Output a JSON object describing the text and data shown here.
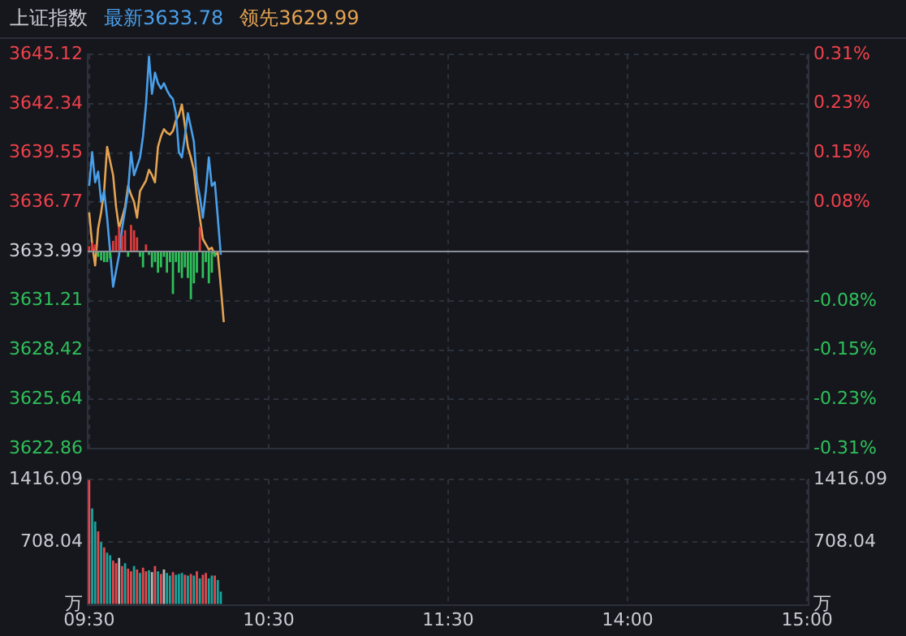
{
  "chart_data": [
    {
      "type": "line",
      "title": "上证指数",
      "legend": "top left",
      "grid": true,
      "tick_labels": "y",
      "categories": [
        null,
        null,
        null,
        null,
        null,
        null,
        null,
        null,
        null,
        null,
        null,
        null,
        null,
        null,
        null,
        null,
        null,
        null,
        null,
        null,
        null,
        null,
        null,
        null,
        null,
        null,
        null,
        null,
        null,
        null,
        null,
        null,
        null,
        null,
        null,
        null,
        null,
        null,
        null,
        null,
        null,
        null,
        null,
        null,
        null,
        null,
        null,
        null,
        null,
        null,
        null,
        null,
        null,
        null,
        null,
        null,
        null,
        null,
        null,
        null,
        null,
        null,
        null,
        null,
        null,
        null,
        null,
        null,
        null,
        null,
        null,
        null,
        null,
        null,
        null,
        null,
        null,
        null,
        null,
        null,
        null,
        null,
        null,
        null,
        null,
        null,
        null,
        null,
        null,
        null,
        null,
        null,
        null,
        null,
        null,
        null,
        null,
        null,
        null,
        null,
        null,
        null,
        null,
        null,
        null,
        null,
        null,
        null,
        null,
        null,
        null,
        null,
        null,
        null,
        null,
        null,
        null,
        null,
        null,
        null,
        null,
        null,
        null,
        null,
        null,
        null,
        null,
        null,
        null,
        null,
        null,
        null,
        null,
        null,
        null,
        null,
        null,
        null,
        null,
        null,
        null,
        null,
        null,
        null,
        null,
        null,
        null,
        null,
        null,
        null,
        null,
        null,
        null,
        null,
        null,
        null,
        null,
        null,
        null,
        null,
        null,
        null,
        null,
        null,
        null,
        null,
        null,
        null,
        null,
        null,
        null,
        null,
        null,
        null,
        null,
        null,
        null,
        null,
        null,
        null,
        null,
        null,
        null,
        null,
        null,
        null,
        null,
        null,
        null,
        null,
        null,
        null,
        null,
        null,
        null,
        null,
        null,
        null,
        null,
        null,
        null,
        null,
        null,
        null,
        null,
        null,
        null,
        null,
        null,
        null,
        null,
        null,
        null,
        null,
        null,
        null,
        null,
        null,
        null,
        null,
        null,
        null,
        null,
        null,
        null,
        null,
        null,
        null,
        null,
        null,
        null,
        null,
        null,
        null,
        null,
        null,
        null,
        null,
        null,
        null,
        null
      ],
      "ylim": [
        3622.86,
        3645.12
      ],
      "yticks": [
        3622.86,
        3625.64,
        3628.42,
        3631.21,
        3633.99,
        3636.77,
        3639.55,
        3642.34,
        3645.12
      ],
      "y2lim": [
        -0.306,
        0.306
      ],
      "y2ticks": [
        {
          "value": -0.306,
          "label": "-0.31%"
        },
        {
          "value": -0.23,
          "label": "-0.23%"
        },
        {
          "value": -0.153,
          "label": "-0.15%"
        },
        {
          "value": -0.077,
          "label": "-0.08%"
        },
        {
          "value": 0.077,
          "label": "0.08%"
        },
        {
          "value": 0.153,
          "label": "0.15%"
        },
        {
          "value": 0.23,
          "label": "0.23%"
        },
        {
          "value": 0.306,
          "label": "0.31%"
        }
      ],
      "ref_lines": [
        {
          "axis": "y",
          "value": 3633.99,
          "color": "#8a8f98"
        }
      ],
      "series": [
        {
          "type": "bar",
          "base": [
            3633.99,
            3633.99,
            3633.99,
            3633.99,
            3633.99,
            3633.99,
            3633.99,
            3633.99,
            3633.99,
            3633.99,
            3633.99,
            3633.99,
            3633.99,
            3633.99,
            3633.99,
            3633.99,
            3633.99,
            3633.99,
            3633.99,
            3633.99,
            3633.99,
            3633.99,
            3633.99,
            3633.99,
            3633.99,
            3633.99,
            3633.99,
            3633.99,
            3633.99,
            3633.99,
            3633.99,
            3633.99,
            3633.99,
            3633.99,
            3633.99,
            3633.99,
            3633.99,
            3633.99,
            3633.99,
            3633.99,
            3633.99,
            3633.99,
            3633.99,
            null,
            null,
            null,
            null,
            null,
            null,
            null,
            null,
            null,
            null,
            null,
            null,
            null,
            null,
            null,
            null,
            null,
            null,
            null,
            null,
            null,
            null,
            null,
            null,
            null,
            null,
            null,
            null,
            null,
            null,
            null,
            null,
            null,
            null,
            null,
            null,
            null,
            null,
            null,
            null,
            null,
            null,
            null,
            null,
            null,
            null,
            null,
            null,
            null,
            null,
            null,
            null,
            null,
            null,
            null,
            null,
            null,
            null,
            null,
            null,
            null,
            null,
            null,
            null,
            null,
            null,
            null,
            null,
            null,
            null,
            null,
            null,
            null,
            null,
            null,
            null,
            null,
            null,
            null,
            null,
            null,
            null,
            null,
            null,
            null,
            null,
            null,
            null,
            null,
            null,
            null,
            null,
            null,
            null,
            null,
            null,
            null,
            null,
            null,
            null,
            null,
            null,
            null,
            null,
            null,
            null,
            null,
            null,
            null,
            null,
            null,
            null,
            null,
            null,
            null,
            null,
            null,
            null,
            null,
            null,
            null,
            null,
            null,
            null,
            null,
            null,
            null,
            null,
            null,
            null,
            null,
            null,
            null,
            null,
            null,
            null,
            null,
            null,
            null,
            null,
            null,
            null,
            null,
            null,
            null,
            null,
            null,
            null,
            null,
            null,
            null,
            null,
            null,
            null,
            null,
            null,
            null,
            null,
            null,
            null,
            null,
            null,
            null,
            null,
            null,
            null,
            null,
            null,
            null,
            null,
            null,
            null,
            null,
            null,
            null,
            null,
            null,
            null,
            null,
            null,
            null,
            null,
            null,
            null,
            null,
            null,
            null,
            null,
            null,
            null,
            null,
            null,
            null,
            null,
            null,
            null,
            null,
            null
          ],
          "values": [
            0.3,
            0.5,
            0.4,
            -0.3,
            -0.5,
            -0.6,
            -0.6,
            -0.4,
            0.6,
            0.9,
            1.4,
            0.9,
            1.2,
            -0.3,
            1.5,
            1.2,
            0.8,
            -0.3,
            -0.9,
            0.4,
            -0.2,
            -0.9,
            -0.6,
            -1.2,
            -0.9,
            -0.3,
            -1.2,
            -0.6,
            -2.4,
            -0.6,
            -1.2,
            -1.5,
            -0.9,
            -1.5,
            -2.7,
            -1.8,
            -1.2,
            1.4,
            -1.5,
            -0.6,
            -1.8,
            -1.2,
            -0.3,
            null,
            null,
            null,
            null,
            null,
            null,
            null,
            null,
            null,
            null,
            null,
            null,
            null,
            null,
            null,
            null,
            null,
            null,
            null,
            null,
            null,
            null,
            null,
            null,
            null,
            null,
            null,
            null,
            null,
            null,
            null,
            null,
            null,
            null,
            null,
            null,
            null,
            null,
            null,
            null,
            null,
            null,
            null,
            null,
            null,
            null,
            null,
            null,
            null,
            null,
            null,
            null,
            null,
            null,
            null,
            null,
            null,
            null,
            null,
            null,
            null,
            null,
            null,
            null,
            null,
            null,
            null,
            null,
            null,
            null,
            null,
            null,
            null,
            null,
            null,
            null,
            null,
            null,
            null,
            null,
            null,
            null,
            null,
            null,
            null,
            null,
            null,
            null,
            null,
            null,
            null,
            null,
            null,
            null,
            null,
            null,
            null,
            null,
            null,
            null,
            null,
            null,
            null,
            null,
            null,
            null,
            null,
            null,
            null,
            null,
            null,
            null,
            null,
            null,
            null,
            null,
            null,
            null,
            null,
            null,
            null,
            null,
            null,
            null,
            null,
            null,
            null,
            null,
            null,
            null,
            null,
            null,
            null,
            null,
            null,
            null,
            null,
            null,
            null,
            null,
            null,
            null,
            null,
            null,
            null,
            null,
            null,
            null,
            null,
            null,
            null,
            null,
            null,
            null,
            null,
            null,
            null,
            null,
            null,
            null,
            null,
            null,
            null,
            null,
            null,
            null,
            null,
            null,
            null,
            null,
            null,
            null,
            null,
            null,
            null,
            null,
            null,
            null,
            null,
            null,
            null,
            null,
            null,
            null,
            null,
            null,
            null,
            null,
            null,
            null,
            null,
            null,
            null,
            null,
            null,
            null,
            null,
            null
          ],
          "colors": [
            "#e03b3b",
            "#e03b3b",
            "#e03b3b",
            "#2fc05a",
            "#2fc05a",
            "#2fc05a",
            "#2fc05a",
            "#2fc05a",
            "#e03b3b",
            "#e03b3b",
            "#e03b3b",
            "#e03b3b",
            "#e03b3b",
            "#2fc05a",
            "#e03b3b",
            "#e03b3b",
            "#e03b3b",
            "#2fc05a",
            "#2fc05a",
            "#e03b3b",
            "#2fc05a",
            "#2fc05a",
            "#2fc05a",
            "#2fc05a",
            "#2fc05a",
            "#2fc05a",
            "#2fc05a",
            "#2fc05a",
            "#2fc05a",
            "#2fc05a",
            "#2fc05a",
            "#2fc05a",
            "#2fc05a",
            "#2fc05a",
            "#2fc05a",
            "#2fc05a",
            "#2fc05a",
            "#e03b3b",
            "#2fc05a",
            "#2fc05a",
            "#2fc05a",
            "#2fc05a",
            "#2fc05a",
            null,
            null,
            null,
            null,
            null,
            null,
            null,
            null,
            null,
            null,
            null,
            null,
            null,
            null,
            null,
            null,
            null,
            null,
            null,
            null,
            null,
            null,
            null,
            null,
            null,
            null,
            null,
            null,
            null,
            null,
            null,
            null,
            null,
            null,
            null,
            null,
            null,
            null,
            null,
            null,
            null,
            null,
            null,
            null,
            null,
            null,
            null,
            null,
            null,
            null,
            null,
            null,
            null,
            null,
            null,
            null,
            null,
            null,
            null,
            null,
            null,
            null,
            null,
            null,
            null,
            null,
            null,
            null,
            null,
            null,
            null,
            null,
            null,
            null,
            null,
            null,
            null,
            null,
            null,
            null,
            null,
            null,
            null,
            null,
            null,
            null,
            null,
            null,
            null,
            null,
            null,
            null,
            null,
            null,
            null,
            null,
            null,
            null,
            null,
            null,
            null,
            null,
            null,
            null,
            null,
            null,
            null,
            null,
            null,
            null,
            null,
            null,
            null,
            null,
            null,
            null,
            null,
            null,
            null,
            null,
            null,
            null,
            null,
            null,
            null,
            null,
            null,
            null,
            null,
            null,
            null,
            null,
            null,
            null,
            null,
            null,
            null,
            null,
            null,
            null,
            null,
            null,
            null,
            null,
            null,
            null,
            null,
            null,
            null,
            null,
            null,
            null,
            null,
            null,
            null,
            null,
            null,
            null,
            null,
            null,
            null,
            null,
            null,
            null,
            null,
            null,
            null,
            null,
            null,
            null,
            null,
            null,
            null,
            null,
            null,
            null,
            null,
            null,
            null,
            null,
            null,
            null,
            null,
            null,
            null,
            null,
            null,
            null,
            null,
            null,
            null,
            null,
            null,
            null,
            null,
            null,
            null,
            null
          ]
        },
        {
          "name": "最新3633.78",
          "color": "#4a9fea",
          "values": [
            3637.7,
            3639.6,
            3637.9,
            3638.5,
            3636.8,
            3637.4,
            3635.9,
            3634.0,
            3632.0,
            3632.9,
            3633.8,
            3635.3,
            3636.3,
            3637.4,
            3639.6,
            3638.3,
            3638.8,
            3639.3,
            3640.5,
            3642.3,
            3645.0,
            3642.9,
            3644.1,
            3643.5,
            3643.2,
            3643.5,
            3643.1,
            3642.8,
            3642.6,
            3641.8,
            3639.6,
            3639.3,
            3640.5,
            3641.8,
            3641.0,
            3640.2,
            3638.0,
            3637.1,
            3635.9,
            3637.4,
            3639.3,
            3637.7,
            3637.9,
            3635.9,
            3633.8,
            null,
            null,
            null,
            null,
            null,
            null,
            null,
            null,
            null,
            null,
            null,
            null,
            null,
            null,
            null,
            null,
            null,
            null,
            null,
            null,
            null,
            null,
            null,
            null,
            null,
            null,
            null,
            null,
            null,
            null,
            null,
            null,
            null,
            null,
            null,
            null,
            null,
            null,
            null,
            null,
            null,
            null,
            null,
            null,
            null,
            null,
            null,
            null,
            null,
            null,
            null,
            null,
            null,
            null,
            null,
            null,
            null,
            null,
            null,
            null,
            null,
            null,
            null,
            null,
            null,
            null,
            null,
            null,
            null,
            null,
            null,
            null,
            null,
            null,
            null,
            null,
            null,
            null,
            null,
            null,
            null,
            null,
            null,
            null,
            null,
            null,
            null,
            null,
            null,
            null,
            null,
            null,
            null,
            null,
            null,
            null,
            null,
            null,
            null,
            null,
            null,
            null,
            null,
            null,
            null,
            null,
            null,
            null,
            null,
            null,
            null,
            null,
            null,
            null,
            null,
            null,
            null,
            null,
            null,
            null,
            null,
            null,
            null,
            null,
            null,
            null,
            null,
            null,
            null,
            null,
            null,
            null,
            null,
            null,
            null,
            null,
            null,
            null,
            null,
            null,
            null,
            null,
            null,
            null,
            null,
            null,
            null,
            null,
            null,
            null,
            null,
            null,
            null,
            null,
            null,
            null,
            null,
            null,
            null,
            null,
            null,
            null,
            null,
            null,
            null,
            null,
            null,
            null,
            null,
            null,
            null,
            null,
            null,
            null,
            null,
            null,
            null,
            null,
            null,
            null,
            null,
            null,
            null,
            null,
            null,
            null,
            null,
            null,
            null,
            null,
            null,
            null,
            null,
            null,
            null,
            null
          ]
        },
        {
          "name": "领先3629.99",
          "color": "#e4a352",
          "values": [
            3636.2,
            3634.4,
            3633.2,
            3635.3,
            3636.2,
            3637.4,
            3639.9,
            3639.1,
            3638.3,
            3636.5,
            3635.3,
            3635.9,
            3636.5,
            3637.7,
            3637.2,
            3636.8,
            3635.9,
            3637.4,
            3637.7,
            3638.0,
            3638.6,
            3638.3,
            3637.9,
            3639.9,
            3640.5,
            3640.9,
            3640.7,
            3640.6,
            3640.8,
            3641.4,
            3641.7,
            3642.3,
            3641.1,
            3639.9,
            3639.3,
            3638.6,
            3637.1,
            3635.9,
            3634.7,
            3634.4,
            3634.1,
            3634.2,
            3633.8,
            3633.9,
            3632.0,
            3630.0,
            null,
            null,
            null,
            null,
            null,
            null,
            null,
            null,
            null,
            null,
            null,
            null,
            null,
            null,
            null,
            null,
            null,
            null,
            null,
            null,
            null,
            null,
            null,
            null,
            null,
            null,
            null,
            null,
            null,
            null,
            null,
            null,
            null,
            null,
            null,
            null,
            null,
            null,
            null,
            null,
            null,
            null,
            null,
            null,
            null,
            null,
            null,
            null,
            null,
            null,
            null,
            null,
            null,
            null,
            null,
            null,
            null,
            null,
            null,
            null,
            null,
            null,
            null,
            null,
            null,
            null,
            null,
            null,
            null,
            null,
            null,
            null,
            null,
            null,
            null,
            null,
            null,
            null,
            null,
            null,
            null,
            null,
            null,
            null,
            null,
            null,
            null,
            null,
            null,
            null,
            null,
            null,
            null,
            null,
            null,
            null,
            null,
            null,
            null,
            null,
            null,
            null,
            null,
            null,
            null,
            null,
            null,
            null,
            null,
            null,
            null,
            null,
            null,
            null,
            null,
            null,
            null,
            null,
            null,
            null,
            null,
            null,
            null,
            null,
            null,
            null,
            null,
            null,
            null,
            null,
            null,
            null,
            null,
            null,
            null,
            null,
            null,
            null,
            null,
            null,
            null,
            null,
            null,
            null,
            null,
            null,
            null,
            null,
            null,
            null,
            null,
            null,
            null,
            null,
            null,
            null,
            null,
            null,
            null,
            null,
            null,
            null,
            null,
            null,
            null,
            null,
            null,
            null,
            null,
            null,
            null,
            null,
            null,
            null,
            null,
            null,
            null,
            null,
            null,
            null,
            null,
            null,
            null,
            null,
            null,
            null,
            null,
            null,
            null,
            null,
            null,
            null,
            null,
            null,
            null
          ]
        }
      ]
    },
    {
      "type": "bar",
      "grid": true,
      "categories": [
        "09:30",
        null,
        null,
        null,
        null,
        null,
        null,
        null,
        null,
        null,
        null,
        null,
        null,
        null,
        null,
        null,
        null,
        null,
        null,
        null,
        null,
        null,
        null,
        null,
        null,
        null,
        null,
        null,
        null,
        null,
        null,
        null,
        null,
        null,
        null,
        null,
        null,
        null,
        null,
        null,
        null,
        null,
        null,
        null,
        null,
        null,
        null,
        null,
        null,
        null,
        null,
        null,
        null,
        null,
        null,
        null,
        null,
        null,
        null,
        null,
        "10:30",
        null,
        null,
        null,
        null,
        null,
        null,
        null,
        null,
        null,
        null,
        null,
        null,
        null,
        null,
        null,
        null,
        null,
        null,
        null,
        null,
        null,
        null,
        null,
        null,
        null,
        null,
        null,
        null,
        null,
        null,
        null,
        null,
        null,
        null,
        null,
        null,
        null,
        null,
        null,
        null,
        null,
        null,
        null,
        null,
        null,
        null,
        null,
        null,
        null,
        null,
        null,
        null,
        null,
        null,
        null,
        null,
        null,
        null,
        null,
        "11:30",
        null,
        null,
        null,
        null,
        null,
        null,
        null,
        null,
        null,
        null,
        null,
        null,
        null,
        null,
        null,
        null,
        null,
        null,
        null,
        null,
        null,
        null,
        null,
        null,
        null,
        null,
        null,
        null,
        null,
        null,
        null,
        null,
        null,
        null,
        null,
        null,
        null,
        null,
        null,
        null,
        null,
        null,
        null,
        null,
        null,
        null,
        null,
        null,
        null,
        null,
        null,
        null,
        null,
        null,
        null,
        null,
        null,
        null,
        null,
        "14:00",
        null,
        null,
        null,
        null,
        null,
        null,
        null,
        null,
        null,
        null,
        null,
        null,
        null,
        null,
        null,
        null,
        null,
        null,
        null,
        null,
        null,
        null,
        null,
        null,
        null,
        null,
        null,
        null,
        null,
        null,
        null,
        null,
        null,
        null,
        null,
        null,
        null,
        null,
        null,
        null,
        null,
        null,
        null,
        null,
        null,
        null,
        null,
        null,
        null,
        null,
        null,
        null,
        null,
        null,
        null,
        null,
        null,
        null,
        null,
        "15:00"
      ],
      "ylim": [
        0,
        1416.09
      ],
      "yticks": [
        {
          "value": 0,
          "label": "万"
        },
        708.04,
        1416.09
      ],
      "y2lim": [
        0,
        1416.09
      ],
      "y2ticks": [
        {
          "value": 0,
          "label": "万"
        },
        708.04,
        1416.09
      ],
      "values": [
        1410,
        1090,
        940,
        830,
        710,
        650,
        590,
        560,
        500,
        470,
        530,
        440,
        470,
        410,
        380,
        440,
        400,
        360,
        420,
        380,
        390,
        370,
        440,
        380,
        350,
        400,
        360,
        330,
        370,
        340,
        350,
        360,
        340,
        330,
        350,
        330,
        380,
        300,
        340,
        360,
        300,
        330,
        330,
        280,
        150,
        null,
        null,
        null,
        null,
        null,
        null,
        null,
        null,
        null,
        null,
        null,
        null,
        null,
        null,
        null,
        null,
        null,
        null,
        null,
        null,
        null,
        null,
        null,
        null,
        null,
        null,
        null,
        null,
        null,
        null,
        null,
        null,
        null,
        null,
        null,
        null,
        null,
        null,
        null,
        null,
        null,
        null,
        null,
        null,
        null,
        null,
        null,
        null,
        null,
        null,
        null,
        null,
        null,
        null,
        null,
        null,
        null,
        null,
        null,
        null,
        null,
        null,
        null,
        null,
        null,
        null,
        null,
        null,
        null,
        null,
        null,
        null,
        null,
        null,
        null,
        null,
        null,
        null,
        null,
        null,
        null,
        null,
        null,
        null,
        null,
        null,
        null,
        null,
        null,
        null,
        null,
        null,
        null,
        null,
        null,
        null,
        null,
        null,
        null,
        null,
        null,
        null,
        null,
        null,
        null,
        null,
        null,
        null,
        null,
        null,
        null,
        null,
        null,
        null,
        null,
        null,
        null,
        null,
        null,
        null,
        null,
        null,
        null,
        null,
        null,
        null,
        null,
        null,
        null,
        null,
        null,
        null,
        null,
        null,
        null,
        null,
        null,
        null,
        null,
        null,
        null,
        null,
        null,
        null,
        null,
        null,
        null,
        null,
        null,
        null,
        null,
        null,
        null,
        null,
        null,
        null,
        null,
        null,
        null,
        null,
        null,
        null,
        null,
        null,
        null,
        null,
        null,
        null,
        null,
        null,
        null,
        null,
        null,
        null,
        null,
        null,
        null,
        null,
        null,
        null,
        null,
        null,
        null,
        null,
        null,
        null,
        null,
        null,
        null,
        null,
        null,
        null,
        null,
        null,
        null,
        null
      ],
      "colors": [
        "#e04a4f",
        "#1aa39c",
        "#1aa39c",
        "#e04a4f",
        "#1aa39c",
        "#e04a4f",
        "#1aa39c",
        "#1aa39c",
        "#e04a4f",
        "#e04a4f",
        "#b8b8b8",
        "#e04a4f",
        "#1aa39c",
        "#e04a4f",
        "#e04a4f",
        "#1aa39c",
        "#e04a4f",
        "#1aa39c",
        "#e04a4f",
        "#e04a4f",
        "#1aa39c",
        "#b8b8b8",
        "#e04a4f",
        "#1aa39c",
        "#e04a4f",
        "#b8b8b8",
        "#1aa39c",
        "#1aa39c",
        "#e04a4f",
        "#1aa39c",
        "#1aa39c",
        "#1aa39c",
        "#e04a4f",
        "#1aa39c",
        "#e04a4f",
        "#1aa39c",
        "#e04a4f",
        "#1aa39c",
        "#e04a4f",
        "#e04a4f",
        "#1aa39c",
        "#1aa39c",
        "#e04a4f",
        "#1aa39c",
        "#1aa39c",
        null,
        null,
        null,
        null,
        null,
        null,
        null,
        null,
        null,
        null,
        null,
        null,
        null,
        null,
        null,
        null,
        null,
        null,
        null,
        null,
        null,
        null,
        null,
        null,
        null,
        null,
        null,
        null,
        null,
        null,
        null,
        null,
        null,
        null,
        null,
        null,
        null,
        null,
        null,
        null,
        null,
        null,
        null,
        null,
        null,
        null,
        null,
        null,
        null,
        null,
        null,
        null,
        null,
        null,
        null,
        null,
        null,
        null,
        null,
        null,
        null,
        null,
        null,
        null,
        null,
        null,
        null,
        null,
        null,
        null,
        null,
        null,
        null,
        null,
        null,
        null,
        null,
        null,
        null,
        null,
        null,
        null,
        null,
        null,
        null,
        null,
        null,
        null,
        null,
        null,
        null,
        null,
        null,
        null,
        null,
        null,
        null,
        null,
        null,
        null,
        null,
        null,
        null,
        null,
        null,
        null,
        null,
        null,
        null,
        null,
        null,
        null,
        null,
        null,
        null,
        null,
        null,
        null,
        null,
        null,
        null,
        null,
        null,
        null,
        null,
        null,
        null,
        null,
        null,
        null,
        null,
        null,
        null,
        null,
        null,
        null,
        null,
        null,
        null,
        null,
        null,
        null,
        null,
        null,
        null,
        null,
        null,
        null,
        null,
        null,
        null,
        null,
        null,
        null,
        null,
        null,
        null,
        null,
        null,
        null,
        null,
        null,
        null,
        null,
        null,
        null,
        null,
        null,
        null,
        null,
        null,
        null,
        null,
        null,
        null,
        null,
        null,
        null,
        null,
        null,
        null,
        null,
        null,
        null,
        null,
        null,
        null,
        null,
        null,
        null,
        null,
        null,
        null,
        null,
        null,
        null
      ]
    }
  ]
}
